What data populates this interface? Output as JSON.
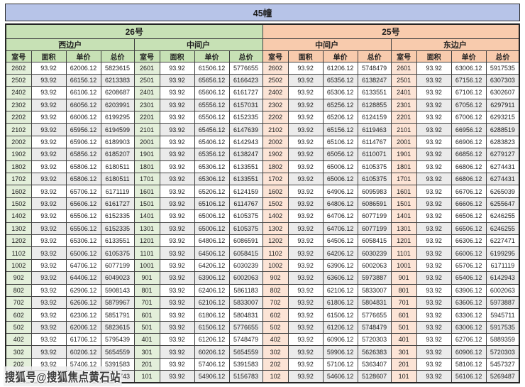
{
  "chart_data": {
    "type": "table",
    "title": "45幢",
    "watermark": "搜狐号@搜狐焦点黄石站",
    "buildings": [
      {
        "name": "26号",
        "theme": "green",
        "unit_types": [
          "西边户",
          "中间户"
        ]
      },
      {
        "name": "25号",
        "theme": "orange",
        "unit_types": [
          "中间户",
          "东边户"
        ]
      }
    ],
    "column_headers": [
      "室号",
      "面积",
      "单价",
      "总价"
    ],
    "legend": "columns repeat 4 times: building 26号(西边户, 中间户) then 25号(中间户, 东边户)",
    "rows": [
      [
        "2602",
        "93.92",
        "62006.12",
        "5823615",
        "2601",
        "93.92",
        "61506.12",
        "5776655",
        "2602",
        "93.92",
        "61206.12",
        "5748479",
        "2601",
        "93.92",
        "63006.12",
        "5917535"
      ],
      [
        "2502",
        "93.92",
        "66156.12",
        "6213383",
        "2501",
        "93.92",
        "65656.12",
        "6166423",
        "2502",
        "93.92",
        "65356.12",
        "6138247",
        "2501",
        "93.92",
        "67156.12",
        "6307303"
      ],
      [
        "2402",
        "93.92",
        "66106.12",
        "6208687",
        "2401",
        "93.92",
        "65606.12",
        "6161727",
        "2402",
        "93.92",
        "65306.12",
        "6133551",
        "2401",
        "93.92",
        "67106.12",
        "6302607"
      ],
      [
        "2302",
        "93.92",
        "66056.12",
        "6203991",
        "2301",
        "93.92",
        "65556.12",
        "6157031",
        "2302",
        "93.92",
        "65256.12",
        "6128855",
        "2301",
        "93.92",
        "67056.12",
        "6297911"
      ],
      [
        "2202",
        "93.92",
        "66006.12",
        "6199295",
        "2201",
        "93.92",
        "65506.12",
        "6152335",
        "2202",
        "93.92",
        "65206.12",
        "6124159",
        "2201",
        "93.92",
        "67006.12",
        "6293215"
      ],
      [
        "2102",
        "93.92",
        "65956.12",
        "6194599",
        "2101",
        "93.92",
        "65456.12",
        "6147639",
        "2102",
        "93.92",
        "65156.12",
        "6119463",
        "2101",
        "93.92",
        "66956.12",
        "6288519"
      ],
      [
        "2002",
        "93.92",
        "65906.12",
        "6189903",
        "2001",
        "93.92",
        "65406.12",
        "6142943",
        "2002",
        "93.92",
        "65106.12",
        "6114767",
        "2001",
        "93.92",
        "66906.12",
        "6283823"
      ],
      [
        "1902",
        "93.92",
        "65856.12",
        "6185207",
        "1901",
        "93.92",
        "65356.12",
        "6138247",
        "1902",
        "93.92",
        "65056.12",
        "6110071",
        "1901",
        "93.92",
        "66856.12",
        "6279127"
      ],
      [
        "1802",
        "93.92",
        "65806.12",
        "6180511",
        "1801",
        "93.92",
        "65306.12",
        "6133551",
        "1802",
        "93.92",
        "65006.12",
        "6105375",
        "1801",
        "93.92",
        "66806.12",
        "6274431"
      ],
      [
        "1702",
        "93.92",
        "65806.12",
        "6180511",
        "1701",
        "93.92",
        "65306.12",
        "6133551",
        "1702",
        "93.92",
        "65006.12",
        "6105375",
        "1701",
        "93.92",
        "66806.12",
        "6274431"
      ],
      [
        "1602",
        "93.92",
        "65706.12",
        "6171119",
        "1601",
        "93.92",
        "65206.12",
        "6124159",
        "1602",
        "93.92",
        "64906.12",
        "6095983",
        "1601",
        "93.92",
        "66706.12",
        "6265039"
      ],
      [
        "1502",
        "93.92",
        "65606.12",
        "6161727",
        "1501",
        "93.92",
        "65106.12",
        "6114767",
        "1502",
        "93.92",
        "64806.12",
        "6086591",
        "1501",
        "93.92",
        "66606.12",
        "6255647"
      ],
      [
        "1402",
        "93.92",
        "65506.12",
        "6152335",
        "1401",
        "93.92",
        "65006.12",
        "6105375",
        "1402",
        "93.92",
        "64706.12",
        "6077199",
        "1401",
        "93.92",
        "66506.12",
        "6246255"
      ],
      [
        "1302",
        "93.92",
        "65506.12",
        "6152335",
        "1301",
        "93.92",
        "65006.12",
        "6105375",
        "1302",
        "93.92",
        "64706.12",
        "6077199",
        "1301",
        "93.92",
        "66506.12",
        "6246255"
      ],
      [
        "1202",
        "93.92",
        "65306.12",
        "6133551",
        "1201",
        "93.92",
        "64806.12",
        "6086591",
        "1202",
        "93.92",
        "64506.12",
        "6058415",
        "1201",
        "93.92",
        "66306.12",
        "6227471"
      ],
      [
        "1102",
        "93.92",
        "65006.12",
        "6105375",
        "1101",
        "93.92",
        "64506.12",
        "6058415",
        "1102",
        "93.92",
        "64206.12",
        "6030239",
        "1101",
        "93.92",
        "66006.12",
        "6199295"
      ],
      [
        "1002",
        "93.92",
        "64706.12",
        "6077199",
        "1001",
        "93.92",
        "64206.12",
        "6030239",
        "1002",
        "93.92",
        "63906.12",
        "6002063",
        "1001",
        "93.92",
        "65706.12",
        "6171119"
      ],
      [
        "902",
        "93.92",
        "64406.12",
        "6049023",
        "901",
        "93.92",
        "63906.12",
        "6002063",
        "902",
        "93.92",
        "63606.12",
        "5973887",
        "901",
        "93.92",
        "65406.12",
        "6142943"
      ],
      [
        "802",
        "93.92",
        "62906.12",
        "5908143",
        "801",
        "93.92",
        "62406.12",
        "5861183",
        "802",
        "93.92",
        "62106.12",
        "5833007",
        "801",
        "93.92",
        "63906.12",
        "6002063"
      ],
      [
        "702",
        "93.92",
        "62606.12",
        "5879967",
        "701",
        "93.92",
        "62106.12",
        "5833007",
        "702",
        "93.92",
        "61806.12",
        "5804831",
        "701",
        "93.92",
        "63606.12",
        "5973887"
      ],
      [
        "602",
        "93.92",
        "62306.12",
        "5851791",
        "601",
        "93.92",
        "61806.12",
        "5804831",
        "602",
        "93.92",
        "61506.12",
        "5776655",
        "601",
        "93.92",
        "63306.12",
        "5945711"
      ],
      [
        "502",
        "93.92",
        "62006.12",
        "5823615",
        "501",
        "93.92",
        "61506.12",
        "5776655",
        "502",
        "93.92",
        "61206.12",
        "5748479",
        "501",
        "93.92",
        "63006.12",
        "5917535"
      ],
      [
        "402",
        "93.92",
        "61706.12",
        "5795439",
        "401",
        "93.92",
        "61206.12",
        "5748479",
        "402",
        "93.92",
        "60906.12",
        "5720303",
        "401",
        "93.92",
        "62706.12",
        "5889359"
      ],
      [
        "302",
        "93.92",
        "60206.12",
        "5654559",
        "301",
        "93.92",
        "60206.12",
        "5654559",
        "302",
        "93.92",
        "59906.12",
        "5626383",
        "301",
        "93.92",
        "60906.12",
        "5720303"
      ],
      [
        "202",
        "93.92",
        "57406.12",
        "5391583",
        "201",
        "93.92",
        "57406.12",
        "5391583",
        "202",
        "93.92",
        "57106.12",
        "5363407",
        "201",
        "93.92",
        "58106.12",
        "5457327"
      ],
      [
        "102",
        "93.92",
        "55406.12",
        "5203743",
        "101",
        "93.92",
        "54906.12",
        "5156783",
        "102",
        "93.92",
        "54606.12",
        "5128607",
        "101",
        "93.92",
        "56106.12",
        "5269487"
      ]
    ],
    "colors": {
      "title_bar": "#b7c4e8",
      "green_header": "#c7e1b5",
      "green_room_cell": "#e3efda",
      "orange_header": "#f8cbad",
      "orange_room_cell": "#fce4d6",
      "stripe": "#ebebeb",
      "border": "#404040"
    }
  }
}
